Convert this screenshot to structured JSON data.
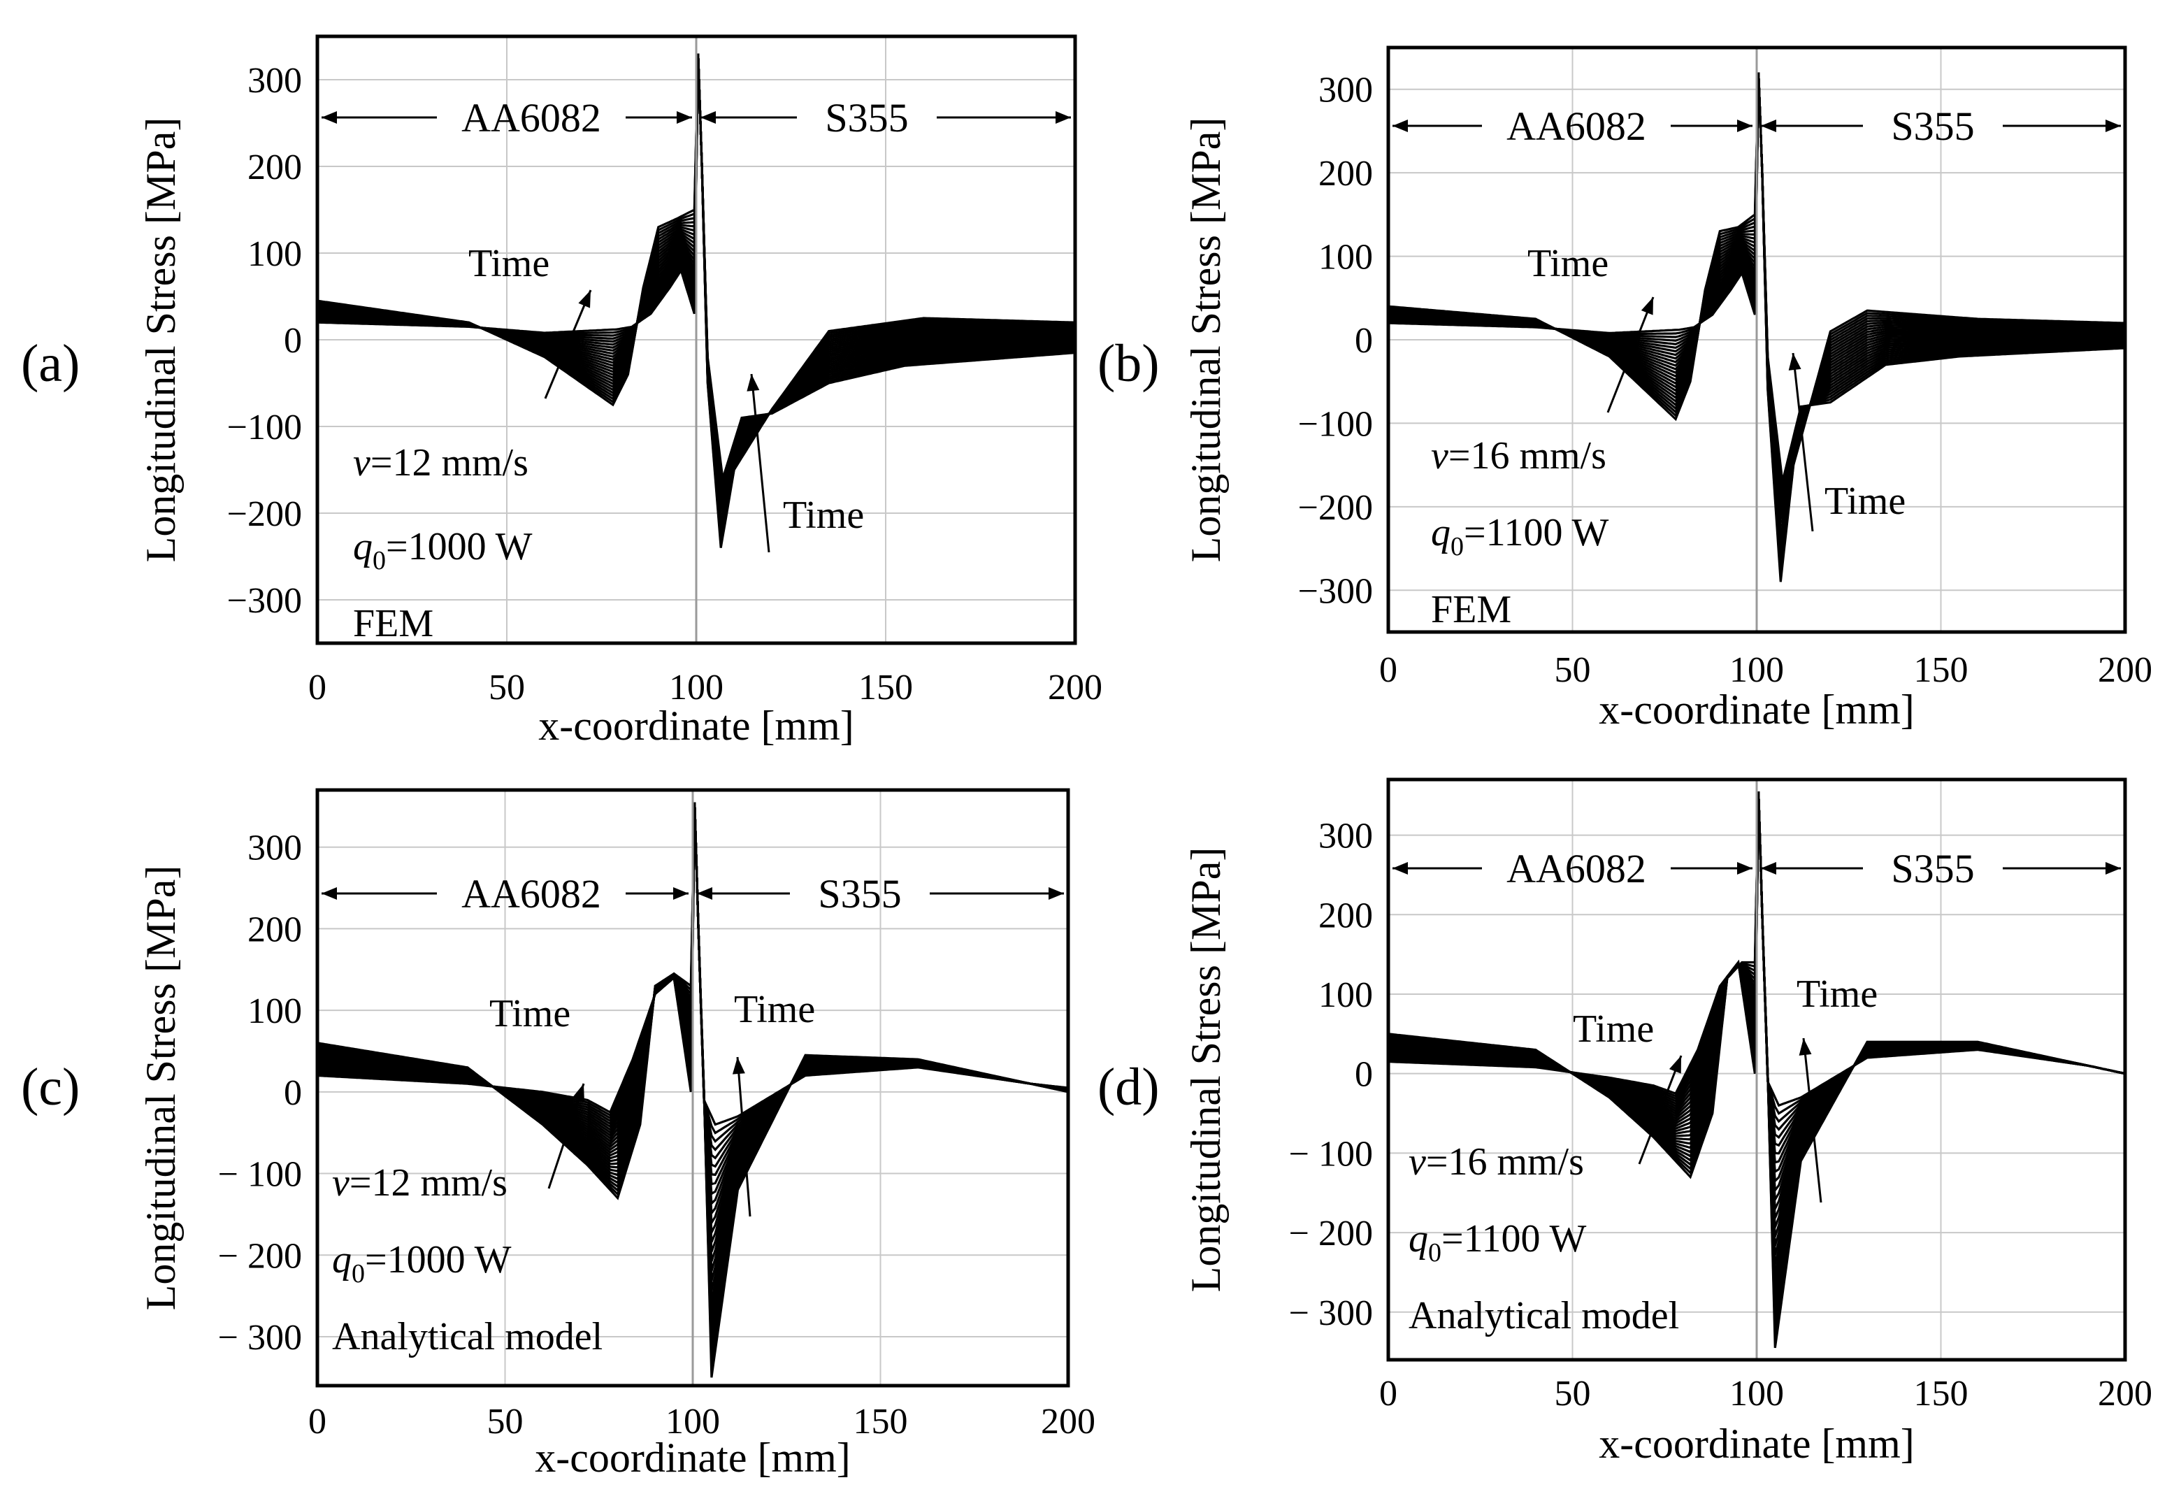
{
  "chart_data": [
    {
      "panel_label": "(a)",
      "type": "line",
      "title": "",
      "xlabel": "x-coordinate [mm]",
      "ylabel": "Longitudinal Stress [MPa]",
      "xlim": [
        0,
        200
      ],
      "ylim": [
        -350,
        350
      ],
      "xticks": [
        0,
        50,
        100,
        150,
        200
      ],
      "yticks": [
        -300,
        -200,
        -100,
        0,
        100,
        200,
        300
      ],
      "xtick_labels": [
        "0",
        "50",
        "100",
        "150",
        "200"
      ],
      "ytick_labels": [
        "−300",
        "−200",
        "−100",
        "0",
        "100",
        "200",
        "300"
      ],
      "grid": true,
      "interface_x": 100,
      "region_left": "AA6082",
      "region_right": "S355",
      "annotations": {
        "velocity_symbol": "v",
        "velocity_text": "=12 mm/s",
        "power_symbol": "q",
        "power_subscript": "0",
        "power_text": "=1000 W",
        "method": "FEM",
        "time_left": "Time",
        "time_right": "Time"
      },
      "series_envelope": {
        "first": {
          "x": [
            0,
            40,
            60,
            79,
            83,
            88,
            93,
            96,
            99.5,
            100.5,
            101.5,
            103,
            107,
            112,
            120,
            135,
            155,
            200
          ],
          "y": [
            20,
            15,
            8,
            12,
            15,
            30,
            60,
            80,
            30,
            330,
            200,
            -20,
            -160,
            -90,
            -85,
            -50,
            -30,
            -15
          ]
        },
        "last": {
          "x": [
            0,
            40,
            60,
            78,
            82,
            86,
            90,
            95,
            99.5,
            100.5,
            101.5,
            103,
            106.5,
            110,
            120,
            135,
            160,
            200
          ],
          "y": [
            45,
            20,
            -20,
            -75,
            -40,
            60,
            130,
            140,
            150,
            330,
            200,
            -50,
            -240,
            -150,
            -80,
            10,
            25,
            20
          ]
        },
        "count": 26
      }
    },
    {
      "panel_label": "(b)",
      "type": "line",
      "title": "",
      "xlabel": "x-coordinate [mm]",
      "ylabel": "Longitudinal Stress [MPa]",
      "xlim": [
        0,
        200
      ],
      "ylim": [
        -350,
        350
      ],
      "xticks": [
        0,
        50,
        100,
        150,
        200
      ],
      "yticks": [
        -300,
        -200,
        -100,
        0,
        100,
        200,
        300
      ],
      "xtick_labels": [
        "0",
        "50",
        "100",
        "150",
        "200"
      ],
      "ytick_labels": [
        "−300",
        "−200",
        "−100",
        "0",
        "100",
        "200",
        "300"
      ],
      "grid": true,
      "interface_x": 100,
      "region_left": "AA6082",
      "region_right": "S355",
      "annotations": {
        "velocity_symbol": "v",
        "velocity_text": "=16 mm/s",
        "power_symbol": "q",
        "power_subscript": "0",
        "power_text": "=1100 W",
        "method": "FEM",
        "time_left": "Time",
        "time_right": "Time"
      },
      "series_envelope": {
        "first": {
          "x": [
            0,
            40,
            60,
            79,
            83,
            88,
            93,
            96,
            99.5,
            100.5,
            101.5,
            103,
            107,
            112,
            120,
            135,
            155,
            200
          ],
          "y": [
            20,
            15,
            8,
            12,
            15,
            30,
            60,
            80,
            30,
            320,
            200,
            -20,
            -170,
            -80,
            -75,
            -30,
            -20,
            -10
          ]
        },
        "last": {
          "x": [
            0,
            40,
            60,
            78,
            82,
            86,
            90,
            95,
            99.5,
            100.5,
            101.5,
            103,
            106.5,
            110,
            120,
            130,
            160,
            200
          ],
          "y": [
            40,
            25,
            -20,
            -95,
            -50,
            60,
            130,
            135,
            150,
            320,
            200,
            -60,
            -290,
            -150,
            10,
            35,
            25,
            20
          ]
        },
        "count": 26
      }
    },
    {
      "panel_label": "(c)",
      "type": "line",
      "title": "",
      "xlabel": "x-coordinate [mm]",
      "ylabel": "Longitudinal Stress [MPa]",
      "xlim": [
        0,
        200
      ],
      "ylim": [
        -360,
        370
      ],
      "xticks": [
        0,
        50,
        100,
        150,
        200
      ],
      "yticks": [
        -300,
        -200,
        -100,
        0,
        100,
        200,
        300
      ],
      "xtick_labels": [
        "0",
        "50",
        "100",
        "150",
        "200"
      ],
      "ytick_labels": [
        "− 300",
        "− 200",
        "− 100",
        "0",
        "100",
        "200",
        "300"
      ],
      "grid": true,
      "interface_x": 100,
      "region_left": "AA6082",
      "region_right": "S355",
      "annotations": {
        "velocity_symbol": "v",
        "velocity_text": "=12 mm/s",
        "power_symbol": "q",
        "power_subscript": "0",
        "power_text": "=1000 W",
        "method": "Analytical model",
        "time_left": "Time",
        "time_right": "Time"
      },
      "series_envelope": {
        "first": {
          "x": [
            0,
            40,
            60,
            72,
            78,
            84,
            90,
            95,
            99.5,
            100.5,
            101.5,
            103,
            106,
            112,
            130,
            160,
            190,
            200
          ],
          "y": [
            20,
            10,
            0,
            -10,
            -25,
            40,
            120,
            140,
            0,
            355,
            200,
            -10,
            -40,
            -30,
            20,
            30,
            10,
            5
          ]
        },
        "last": {
          "x": [
            0,
            40,
            60,
            72,
            80,
            86,
            90,
            95,
            99.5,
            100.5,
            101.5,
            103,
            105,
            112,
            130,
            160,
            190,
            200
          ],
          "y": [
            60,
            30,
            -40,
            -90,
            -130,
            -40,
            130,
            145,
            130,
            355,
            200,
            0,
            -350,
            -120,
            45,
            40,
            10,
            0
          ]
        },
        "count": 28
      }
    },
    {
      "panel_label": "(d)",
      "type": "line",
      "title": "",
      "xlabel": "x-coordinate [mm]",
      "ylabel": "Longitudinal Stress [MPa]",
      "xlim": [
        0,
        200
      ],
      "ylim": [
        -360,
        370
      ],
      "xticks": [
        0,
        50,
        100,
        150,
        200
      ],
      "yticks": [
        -300,
        -200,
        -100,
        0,
        100,
        200,
        300
      ],
      "xtick_labels": [
        "0",
        "50",
        "100",
        "150",
        "200"
      ],
      "ytick_labels": [
        "− 300",
        "− 200",
        "− 100",
        "0",
        "100",
        "200",
        "300"
      ],
      "grid": true,
      "interface_x": 100,
      "region_left": "AA6082",
      "region_right": "S355",
      "annotations": {
        "velocity_symbol": "v",
        "velocity_text": "=16 mm/s",
        "power_symbol": "q",
        "power_subscript": "0",
        "power_text": "=1100 W",
        "method": "Analytical model",
        "time_left": "Time",
        "time_right": "Time"
      },
      "series_envelope": {
        "first": {
          "x": [
            0,
            40,
            60,
            72,
            78,
            84,
            90,
            95,
            99.5,
            100.5,
            101.5,
            103,
            106,
            112,
            130,
            160,
            190,
            200
          ],
          "y": [
            15,
            8,
            -5,
            -15,
            -25,
            30,
            110,
            140,
            0,
            355,
            200,
            -10,
            -40,
            -30,
            20,
            30,
            10,
            0
          ]
        },
        "last": {
          "x": [
            0,
            40,
            60,
            72,
            82,
            88,
            92,
            96,
            99.5,
            100.5,
            101.5,
            103,
            105,
            112,
            130,
            160,
            190,
            200
          ],
          "y": [
            50,
            30,
            -30,
            -80,
            -130,
            -50,
            120,
            140,
            140,
            355,
            200,
            0,
            -345,
            -110,
            40,
            40,
            10,
            0
          ]
        },
        "count": 28
      }
    }
  ]
}
